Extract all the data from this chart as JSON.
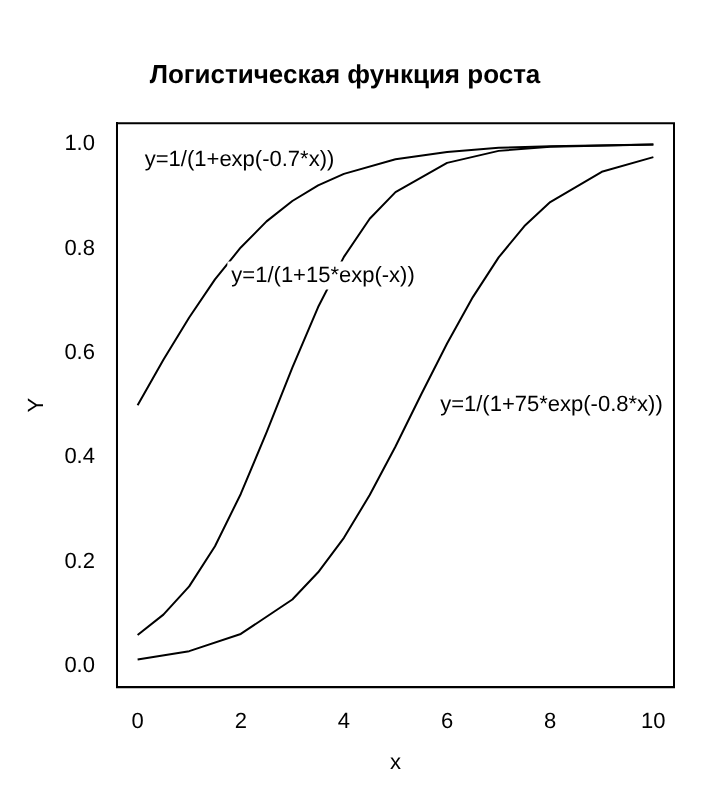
{
  "chart_data": {
    "type": "line",
    "title": "Логистическая функция роста",
    "xlabel": "x",
    "ylabel": "Y",
    "series": [
      {
        "color": "#000000",
        "x": [
          0,
          0.5,
          1,
          1.5,
          2,
          2.5,
          3,
          3.5,
          4,
          5,
          6,
          7,
          8,
          10
        ],
        "values": [
          0.5,
          0.587,
          0.668,
          0.741,
          0.802,
          0.852,
          0.891,
          0.921,
          0.943,
          0.971,
          0.985,
          0.993,
          0.996,
          0.999
        ]
      },
      {
        "color": "#000000",
        "x": [
          0,
          0.5,
          1,
          1.5,
          2,
          2.5,
          3,
          3.5,
          4,
          4.5,
          5,
          6,
          7,
          8,
          10
        ],
        "values": [
          0.06,
          0.099,
          0.153,
          0.23,
          0.33,
          0.448,
          0.572,
          0.688,
          0.784,
          0.857,
          0.908,
          0.964,
          0.987,
          0.995,
          0.999
        ]
      },
      {
        "color": "#000000",
        "x": [
          0,
          1,
          2,
          3,
          3.5,
          4,
          4.5,
          5,
          5.5,
          6,
          6.5,
          7,
          7.5,
          8,
          9,
          10
        ],
        "values": [
          0.013,
          0.029,
          0.062,
          0.128,
          0.18,
          0.246,
          0.328,
          0.421,
          0.521,
          0.618,
          0.707,
          0.783,
          0.843,
          0.889,
          0.947,
          0.975
        ]
      }
    ],
    "xlim": [
      -0.4,
      10.4
    ],
    "xticks": [
      0,
      2,
      4,
      6,
      8,
      10
    ],
    "ylim": [
      -0.04,
      1.04
    ],
    "yticks": [
      {
        "value": 0,
        "label": "0.0"
      },
      {
        "value": 0.2,
        "label": "0.2"
      },
      {
        "value": 0.4,
        "label": "0.4"
      },
      {
        "value": 0.6,
        "label": "0.6"
      },
      {
        "value": 0.8,
        "label": "0.8"
      },
      {
        "value": 1,
        "label": "1.0"
      }
    ],
    "annotations": [
      "y=1/(1+exp(-0.7*x))",
      "y=1/(1+15*exp(-x))",
      "y=1/(1+75*exp(-0.8*x))"
    ],
    "grid": false,
    "legend": false,
    "marker": "none",
    "line_style": "solid"
  }
}
